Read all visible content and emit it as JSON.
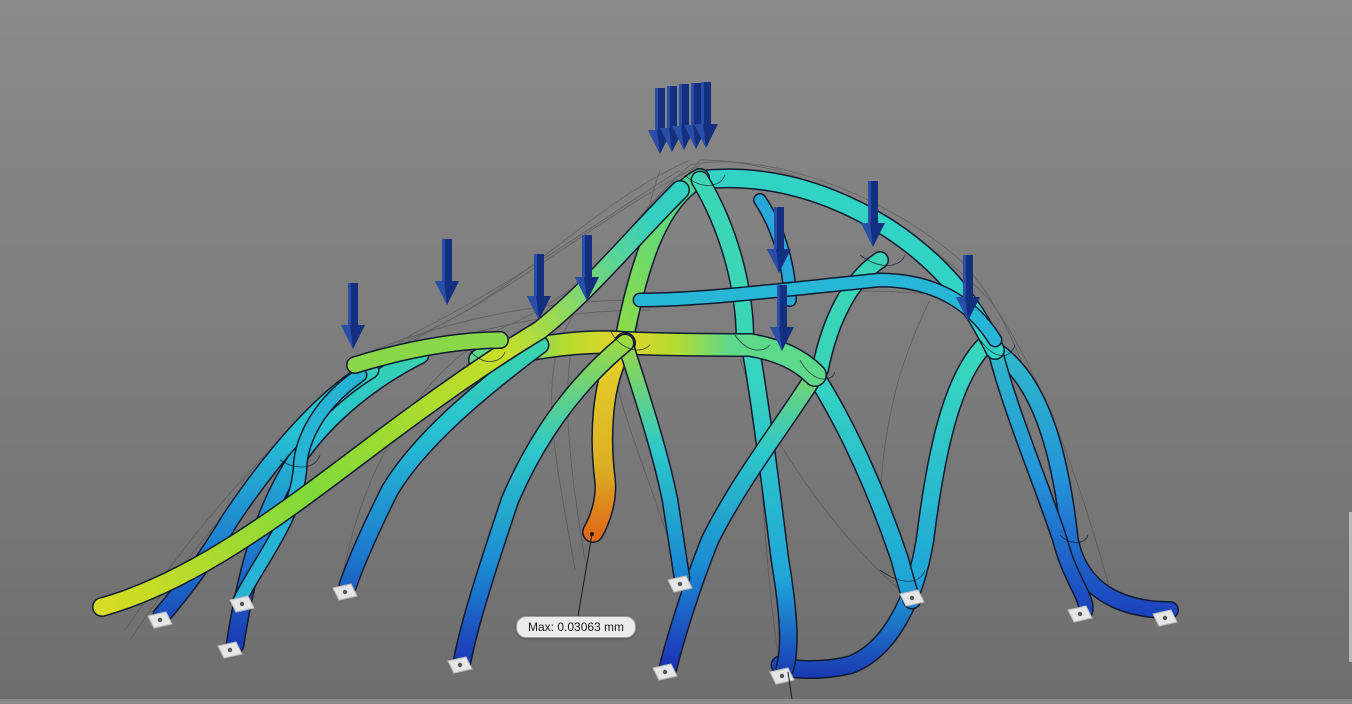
{
  "viewport": {
    "max_label": "Max: 0.03063 mm",
    "color_scale": [
      "#1f2fb0",
      "#1aa6d9",
      "#2fd6c4",
      "#63e07a",
      "#d9dc27",
      "#e2821d"
    ],
    "arrow_color": "#0f2d7a",
    "background_color": "#808080"
  }
}
